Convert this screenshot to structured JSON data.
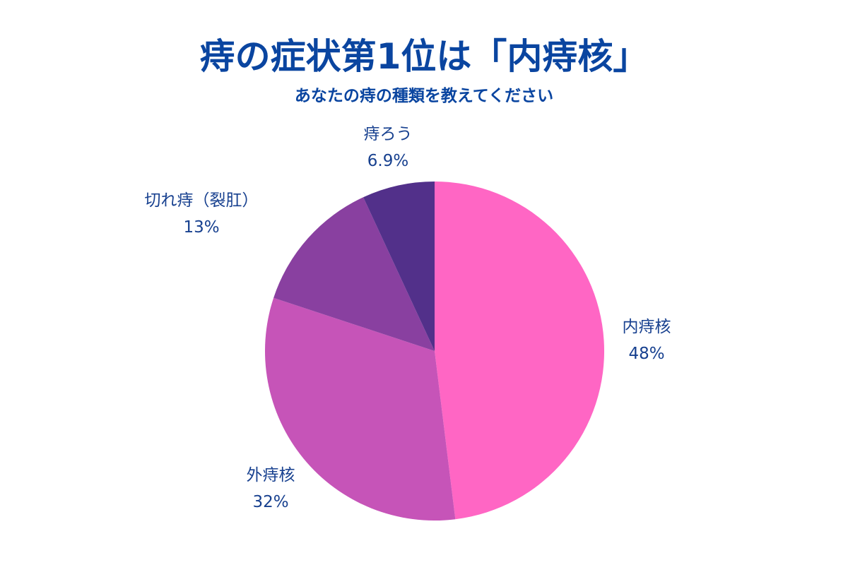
{
  "chart_data": {
    "type": "pie",
    "title": "痔の症状第1位は「内痔核」",
    "subtitle": "あなたの痔の種類を教えてください",
    "slices": [
      {
        "name": "内痔核",
        "value": 48,
        "value_label": "48%",
        "color": "#ff66c4"
      },
      {
        "name": "外痔核",
        "value": 32,
        "value_label": "32%",
        "color": "#c654b8"
      },
      {
        "name": "切れ痔（裂肛）",
        "value": 13,
        "value_label": "13%",
        "color": "#8940a0"
      },
      {
        "name": "痔ろう",
        "value": 6.9,
        "value_label": "6.9%",
        "color": "#52308a"
      }
    ],
    "start_angle_deg": 0,
    "direction": "clockwise",
    "legend": "none"
  }
}
